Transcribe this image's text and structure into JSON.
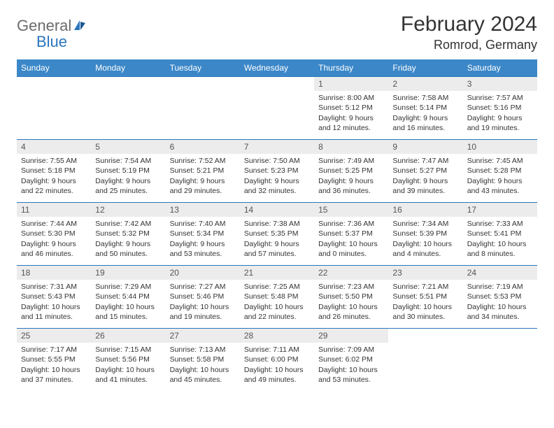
{
  "brand": {
    "line1": "General",
    "line2": "Blue"
  },
  "title": "February 2024",
  "location": "Romrod, Germany",
  "colors": {
    "header_bg": "#3b87c8",
    "border": "#2b75bb",
    "daynum_bg": "#ececec",
    "text": "#333333"
  },
  "weekdays": [
    "Sunday",
    "Monday",
    "Tuesday",
    "Wednesday",
    "Thursday",
    "Friday",
    "Saturday"
  ],
  "weeks": [
    [
      null,
      null,
      null,
      null,
      {
        "n": "1",
        "sr": "8:00 AM",
        "ss": "5:12 PM",
        "dl": "9 hours and 12 minutes."
      },
      {
        "n": "2",
        "sr": "7:58 AM",
        "ss": "5:14 PM",
        "dl": "9 hours and 16 minutes."
      },
      {
        "n": "3",
        "sr": "7:57 AM",
        "ss": "5:16 PM",
        "dl": "9 hours and 19 minutes."
      }
    ],
    [
      {
        "n": "4",
        "sr": "7:55 AM",
        "ss": "5:18 PM",
        "dl": "9 hours and 22 minutes."
      },
      {
        "n": "5",
        "sr": "7:54 AM",
        "ss": "5:19 PM",
        "dl": "9 hours and 25 minutes."
      },
      {
        "n": "6",
        "sr": "7:52 AM",
        "ss": "5:21 PM",
        "dl": "9 hours and 29 minutes."
      },
      {
        "n": "7",
        "sr": "7:50 AM",
        "ss": "5:23 PM",
        "dl": "9 hours and 32 minutes."
      },
      {
        "n": "8",
        "sr": "7:49 AM",
        "ss": "5:25 PM",
        "dl": "9 hours and 36 minutes."
      },
      {
        "n": "9",
        "sr": "7:47 AM",
        "ss": "5:27 PM",
        "dl": "9 hours and 39 minutes."
      },
      {
        "n": "10",
        "sr": "7:45 AM",
        "ss": "5:28 PM",
        "dl": "9 hours and 43 minutes."
      }
    ],
    [
      {
        "n": "11",
        "sr": "7:44 AM",
        "ss": "5:30 PM",
        "dl": "9 hours and 46 minutes."
      },
      {
        "n": "12",
        "sr": "7:42 AM",
        "ss": "5:32 PM",
        "dl": "9 hours and 50 minutes."
      },
      {
        "n": "13",
        "sr": "7:40 AM",
        "ss": "5:34 PM",
        "dl": "9 hours and 53 minutes."
      },
      {
        "n": "14",
        "sr": "7:38 AM",
        "ss": "5:35 PM",
        "dl": "9 hours and 57 minutes."
      },
      {
        "n": "15",
        "sr": "7:36 AM",
        "ss": "5:37 PM",
        "dl": "10 hours and 0 minutes."
      },
      {
        "n": "16",
        "sr": "7:34 AM",
        "ss": "5:39 PM",
        "dl": "10 hours and 4 minutes."
      },
      {
        "n": "17",
        "sr": "7:33 AM",
        "ss": "5:41 PM",
        "dl": "10 hours and 8 minutes."
      }
    ],
    [
      {
        "n": "18",
        "sr": "7:31 AM",
        "ss": "5:43 PM",
        "dl": "10 hours and 11 minutes."
      },
      {
        "n": "19",
        "sr": "7:29 AM",
        "ss": "5:44 PM",
        "dl": "10 hours and 15 minutes."
      },
      {
        "n": "20",
        "sr": "7:27 AM",
        "ss": "5:46 PM",
        "dl": "10 hours and 19 minutes."
      },
      {
        "n": "21",
        "sr": "7:25 AM",
        "ss": "5:48 PM",
        "dl": "10 hours and 22 minutes."
      },
      {
        "n": "22",
        "sr": "7:23 AM",
        "ss": "5:50 PM",
        "dl": "10 hours and 26 minutes."
      },
      {
        "n": "23",
        "sr": "7:21 AM",
        "ss": "5:51 PM",
        "dl": "10 hours and 30 minutes."
      },
      {
        "n": "24",
        "sr": "7:19 AM",
        "ss": "5:53 PM",
        "dl": "10 hours and 34 minutes."
      }
    ],
    [
      {
        "n": "25",
        "sr": "7:17 AM",
        "ss": "5:55 PM",
        "dl": "10 hours and 37 minutes."
      },
      {
        "n": "26",
        "sr": "7:15 AM",
        "ss": "5:56 PM",
        "dl": "10 hours and 41 minutes."
      },
      {
        "n": "27",
        "sr": "7:13 AM",
        "ss": "5:58 PM",
        "dl": "10 hours and 45 minutes."
      },
      {
        "n": "28",
        "sr": "7:11 AM",
        "ss": "6:00 PM",
        "dl": "10 hours and 49 minutes."
      },
      {
        "n": "29",
        "sr": "7:09 AM",
        "ss": "6:02 PM",
        "dl": "10 hours and 53 minutes."
      },
      null,
      null
    ]
  ],
  "labels": {
    "sunrise": "Sunrise:",
    "sunset": "Sunset:",
    "daylight": "Daylight:"
  }
}
